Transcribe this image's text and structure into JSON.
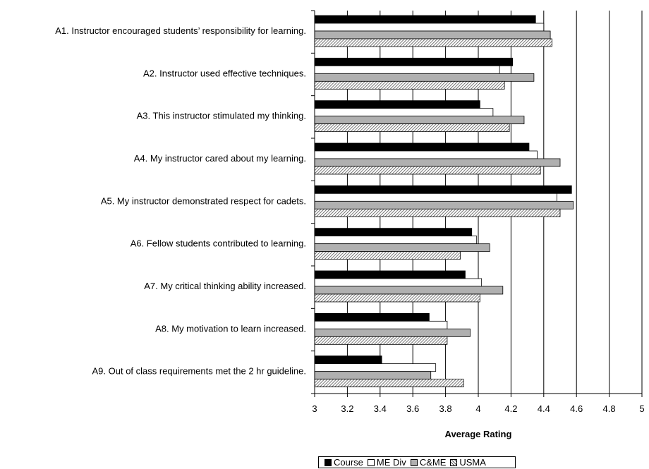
{
  "chart_data": {
    "type": "bar",
    "orientation": "horizontal",
    "title": "",
    "xlabel": "Average Rating",
    "ylabel": "",
    "xlim": [
      3,
      5
    ],
    "xticks": [
      "3",
      "3.2",
      "3.4",
      "3.6",
      "3.8",
      "4",
      "4.2",
      "4.4",
      "4.6",
      "4.8",
      "5"
    ],
    "grid": "vertical",
    "legend_position": "bottom",
    "categories": [
      "A1. Instructor encouraged students’ responsibility for learning.",
      "A2. Instructor used effective techniques.",
      "A3. This instructor stimulated my thinking.",
      "A4. My instructor cared about my learning.",
      "A5. My instructor demonstrated respect for cadets.",
      "A6. Fellow students contributed to learning.",
      "A7. My critical thinking ability increased.",
      "A8. My motivation to learn increased.",
      "A9. Out of class requirements met the 2 hr guideline."
    ],
    "series": [
      {
        "name": "Course",
        "fill": "#000000",
        "values": [
          4.35,
          4.21,
          4.01,
          4.31,
          4.57,
          3.96,
          3.92,
          3.7,
          3.41
        ]
      },
      {
        "name": "ME Div",
        "fill": "#ffffff",
        "values": [
          4.4,
          4.13,
          4.09,
          4.36,
          4.48,
          3.99,
          4.02,
          3.81,
          3.74
        ]
      },
      {
        "name": "C&ME",
        "fill": "#b0b0b0",
        "values": [
          4.44,
          4.34,
          4.28,
          4.5,
          4.58,
          4.07,
          4.15,
          3.95,
          3.71
        ]
      },
      {
        "name": "USMA",
        "fill": "hatch",
        "values": [
          4.45,
          4.16,
          4.19,
          4.38,
          4.5,
          3.89,
          4.01,
          3.81,
          3.91
        ]
      }
    ]
  }
}
